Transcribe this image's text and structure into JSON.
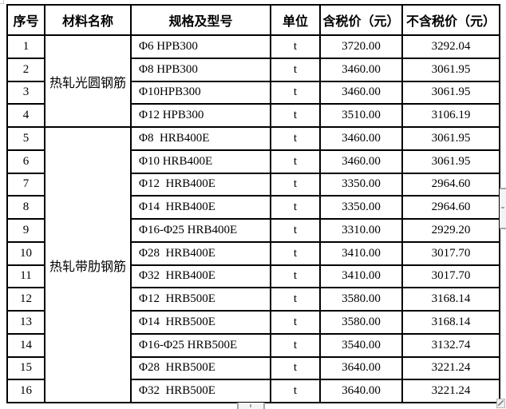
{
  "colors": {
    "table_border": "#000000",
    "text": "#000000",
    "scrollbar_bg": "#f4f4f4",
    "scrollbar_mark": "#a6a6a6"
  },
  "table": {
    "headers": [
      "序号",
      "材料名称",
      "规格及型号",
      "单位",
      "含税价（元）",
      "不含税价（元）"
    ],
    "groups": [
      {
        "material": "热轧光圆钢筋",
        "rows": [
          {
            "no": "1",
            "spec": "Φ6 HPB300",
            "unit": "t",
            "price_with_tax": "3720.00",
            "price_without_tax": "3292.04"
          },
          {
            "no": "2",
            "spec": "Φ8 HPB300",
            "unit": "t",
            "price_with_tax": "3460.00",
            "price_without_tax": "3061.95"
          },
          {
            "no": "3",
            "spec": "Φ10HPB300",
            "unit": "t",
            "price_with_tax": "3460.00",
            "price_without_tax": "3061.95"
          },
          {
            "no": "4",
            "spec": "Φ12 HPB300",
            "unit": "t",
            "price_with_tax": "3510.00",
            "price_without_tax": "3106.19"
          }
        ]
      },
      {
        "material": "热轧带肋钢筋",
        "rows": [
          {
            "no": "5",
            "spec": "Φ8  HRB400E",
            "unit": "t",
            "price_with_tax": "3460.00",
            "price_without_tax": "3061.95"
          },
          {
            "no": "6",
            "spec": "Φ10 HRB400E",
            "unit": "t",
            "price_with_tax": "3460.00",
            "price_without_tax": "3061.95"
          },
          {
            "no": "7",
            "spec": "Φ12  HRB400E",
            "unit": "t",
            "price_with_tax": "3350.00",
            "price_without_tax": "2964.60"
          },
          {
            "no": "8",
            "spec": "Φ14  HRB400E",
            "unit": "t",
            "price_with_tax": "3350.00",
            "price_without_tax": "2964.60"
          },
          {
            "no": "9",
            "spec": "Φ16-Φ25 HRB400E",
            "unit": "t",
            "price_with_tax": "3310.00",
            "price_without_tax": "2929.20"
          },
          {
            "no": "10",
            "spec": "Φ28  HRB400E",
            "unit": "t",
            "price_with_tax": "3410.00",
            "price_without_tax": "3017.70"
          },
          {
            "no": "11",
            "spec": "Φ32  HRB400E",
            "unit": "t",
            "price_with_tax": "3410.00",
            "price_without_tax": "3017.70"
          },
          {
            "no": "12",
            "spec": "Φ12  HRB500E",
            "unit": "t",
            "price_with_tax": "3580.00",
            "price_without_tax": "3168.14"
          },
          {
            "no": "13",
            "spec": "Φ14  HRB500E",
            "unit": "t",
            "price_with_tax": "3580.00",
            "price_without_tax": "3168.14"
          },
          {
            "no": "14",
            "spec": "Φ16-Φ25 HRB500E",
            "unit": "t",
            "price_with_tax": "3540.00",
            "price_without_tax": "3132.74"
          },
          {
            "no": "15",
            "spec": "Φ28  HRB500E",
            "unit": "t",
            "price_with_tax": "3640.00",
            "price_without_tax": "3221.24"
          },
          {
            "no": "16",
            "spec": "Φ32  HRB500E",
            "unit": "t",
            "price_with_tax": "3640.00",
            "price_without_tax": "3221.24"
          }
        ]
      }
    ]
  }
}
